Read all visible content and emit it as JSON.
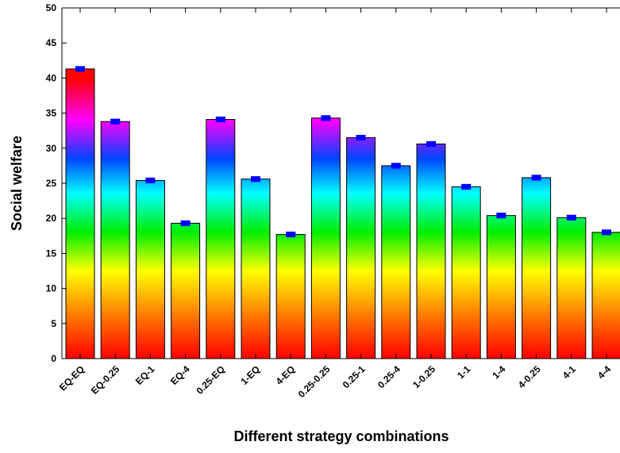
{
  "chart_data": {
    "type": "bar",
    "title": "",
    "xlabel": "Different strategy combinations",
    "ylabel": "Social welfare",
    "ylim": [
      0,
      50
    ],
    "yticks": [
      0,
      5,
      10,
      15,
      20,
      25,
      30,
      35,
      40,
      45,
      50
    ],
    "grid": false,
    "legend": "none",
    "categories": [
      "EQ-EQ",
      "EQ-0.25",
      "EQ-1",
      "EQ-4",
      "0.25-EQ",
      "1-EQ",
      "4-EQ",
      "0.25-0.25",
      "0.25-1",
      "0.25-4",
      "1-0.25",
      "1-1",
      "1-4",
      "4-0.25",
      "4-1",
      "4-4"
    ],
    "values": [
      41.3,
      33.8,
      25.4,
      19.3,
      34.1,
      25.6,
      17.7,
      34.3,
      31.5,
      27.5,
      30.6,
      24.5,
      20.4,
      25.8,
      20.1,
      18.0
    ],
    "error_bars": [
      0.15,
      0.15,
      0.15,
      0.15,
      0.15,
      0.15,
      0.15,
      0.15,
      0.15,
      0.15,
      0.15,
      0.15,
      0.15,
      0.15,
      0.15,
      0.15
    ],
    "colors": {
      "error_bar": "#0000ff",
      "gradient": [
        "#ff0000",
        "#ff7700",
        "#ffff00",
        "#00ee00",
        "#00ffff",
        "#0044ff",
        "#ff00ff",
        "#ff0000"
      ]
    }
  }
}
